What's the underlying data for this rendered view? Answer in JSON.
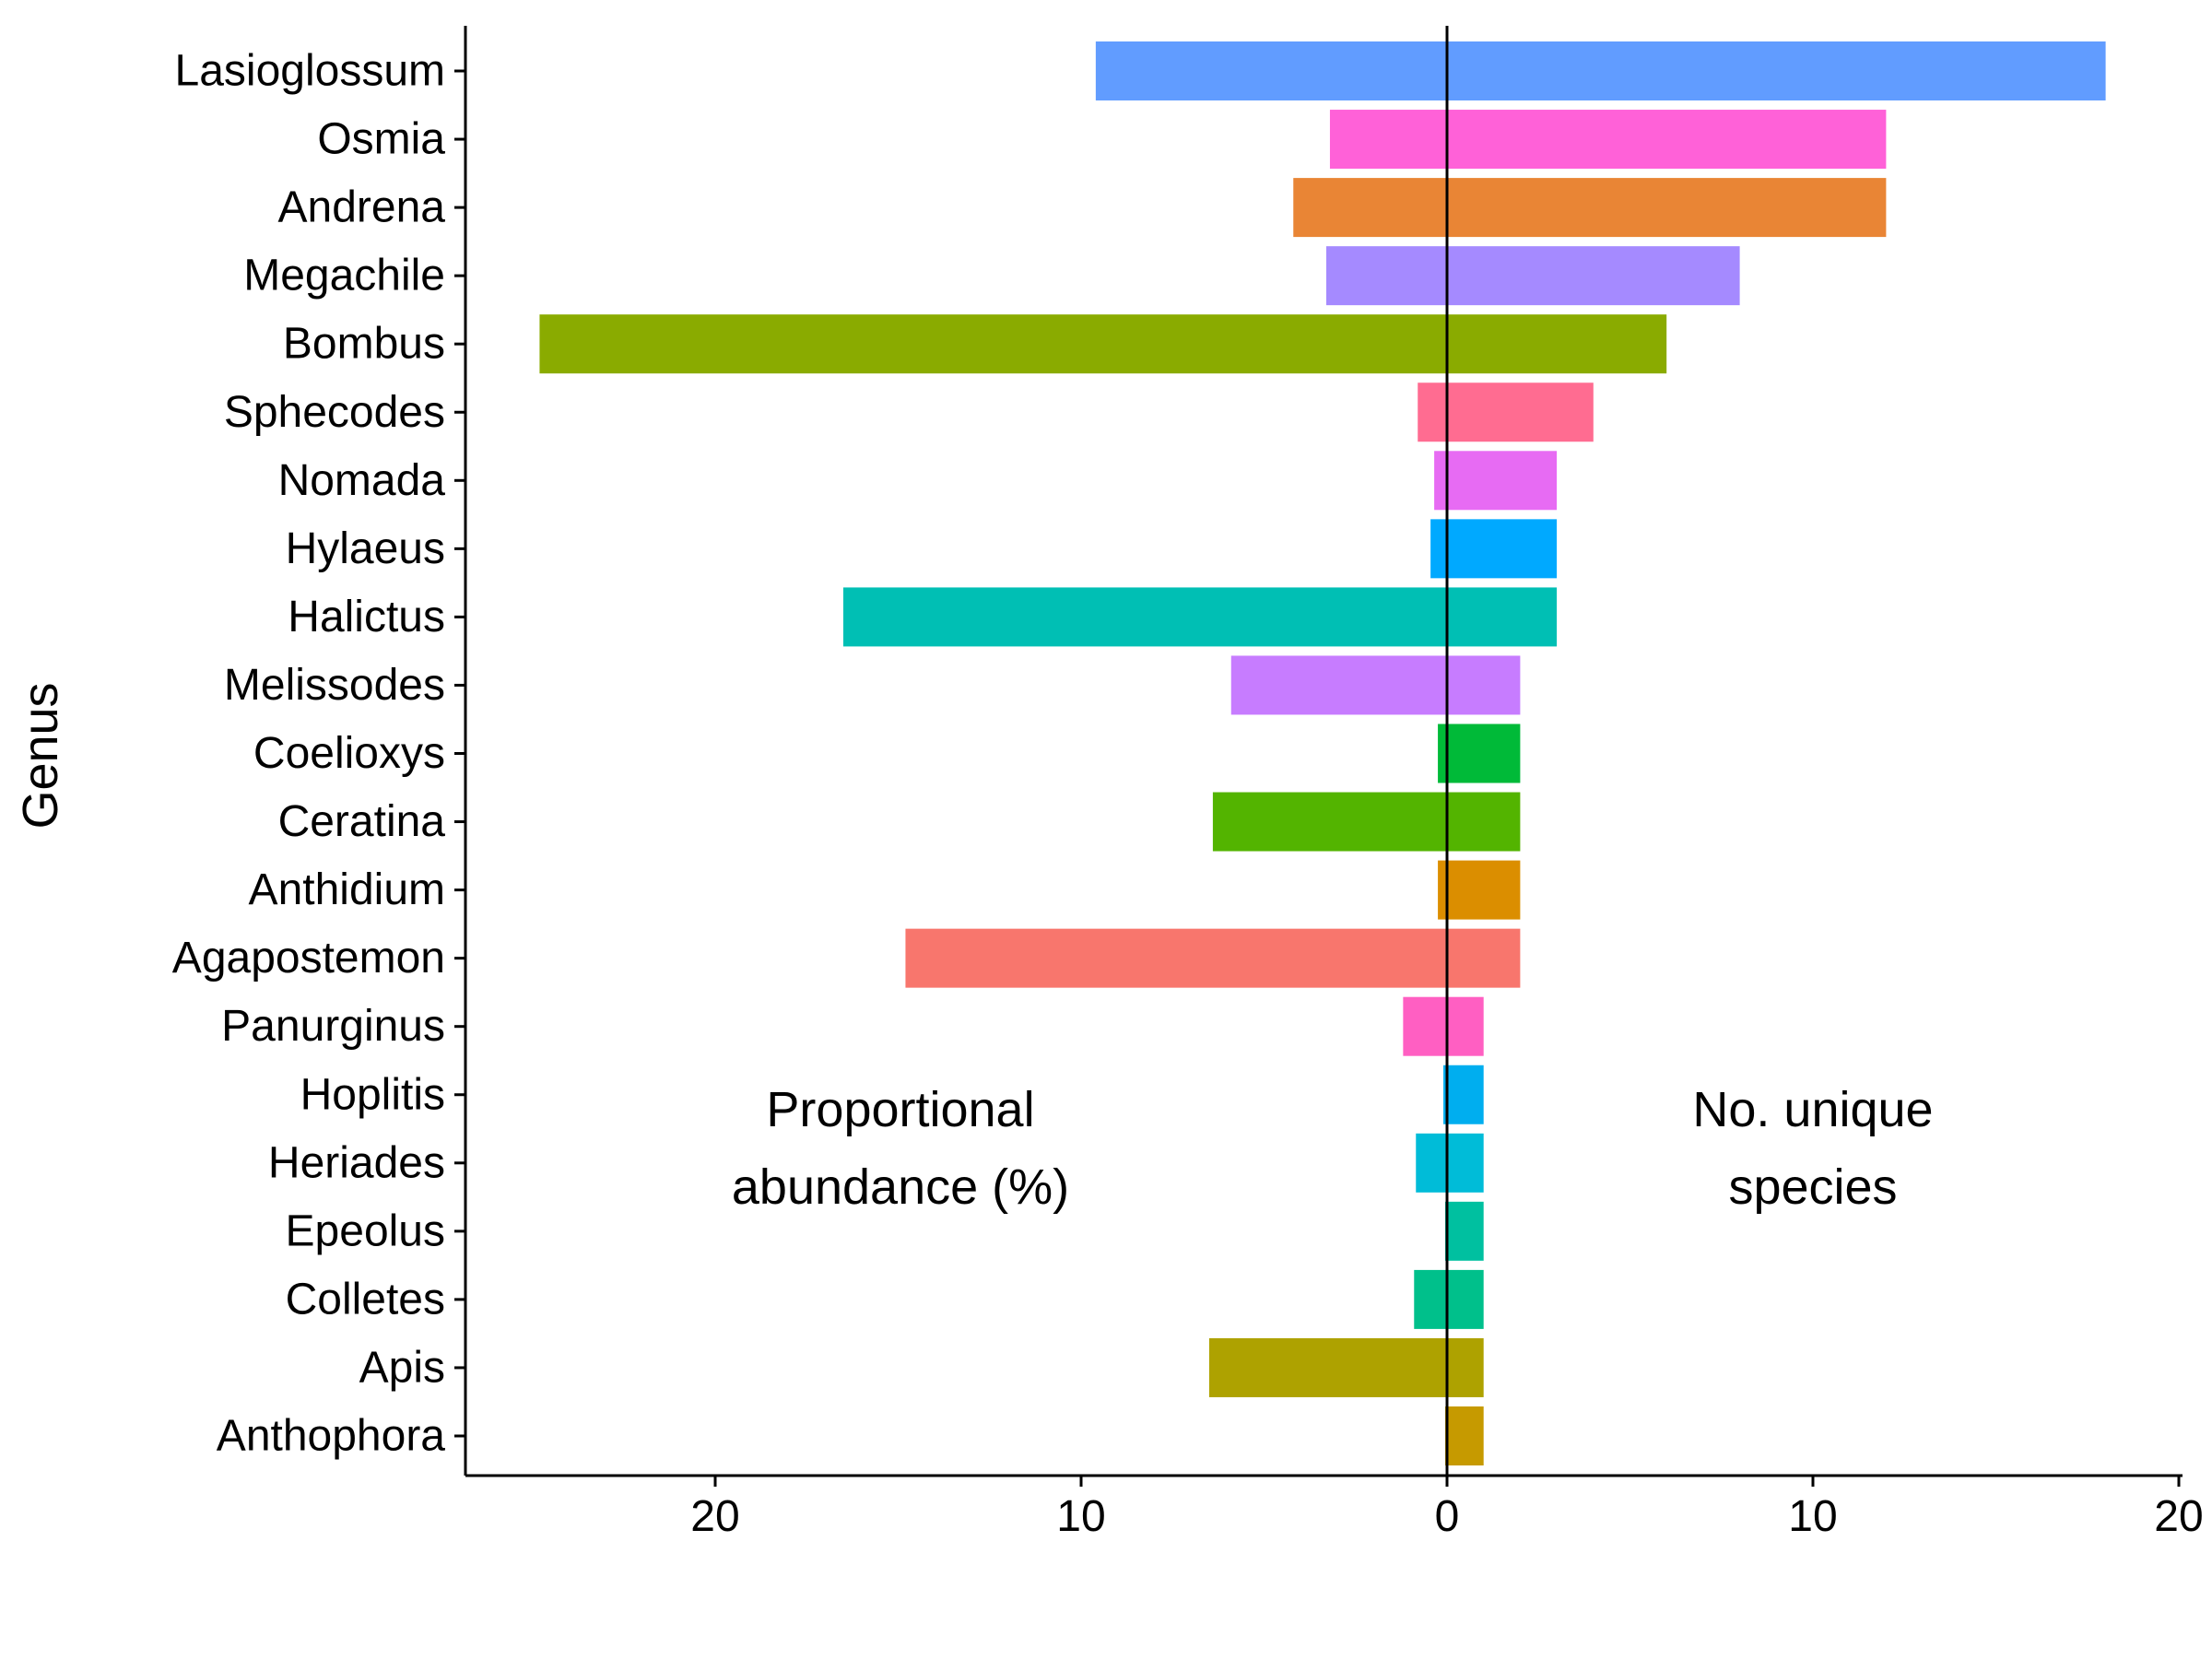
{
  "chart_data": {
    "type": "bar",
    "orientation": "horizontal-diverging",
    "ylabel": "Genus",
    "xlabel": "",
    "xlim": [
      -27,
      20
    ],
    "x_ticks": [
      {
        "value": -20,
        "label": "20"
      },
      {
        "value": -10,
        "label": "10"
      },
      {
        "value": 0,
        "label": "0"
      },
      {
        "value": 10,
        "label": "10"
      },
      {
        "value": 20,
        "label": "20"
      }
    ],
    "annotations": {
      "left": [
        "Proportional",
        "abundance (%)"
      ],
      "right": [
        "No. unique",
        "species"
      ]
    },
    "categories": [
      "Lasioglossum",
      "Osmia",
      "Andrena",
      "Megachile",
      "Bombus",
      "Sphecodes",
      "Nomada",
      "Hylaeus",
      "Halictus",
      "Melissodes",
      "Coelioxys",
      "Ceratina",
      "Anthidium",
      "Agapostemon",
      "Panurginus",
      "Hoplitis",
      "Heriades",
      "Epeolus",
      "Colletes",
      "Apis",
      "Anthophora"
    ],
    "series": [
      {
        "name": "Proportional abundance (%)",
        "side": "left",
        "values": [
          9.6,
          3.2,
          4.2,
          3.3,
          24.8,
          0.8,
          0.35,
          0.45,
          16.5,
          5.9,
          0.25,
          6.4,
          0.25,
          14.8,
          1.2,
          0.1,
          0.85,
          0.05,
          0.9,
          6.5,
          0.05
        ]
      },
      {
        "name": "No. unique species",
        "side": "right",
        "values": [
          18,
          12,
          12,
          8,
          6,
          4,
          3,
          3,
          3,
          2,
          2,
          2,
          2,
          2,
          1,
          1,
          1,
          1,
          1,
          1,
          1
        ]
      }
    ],
    "colors": [
      "#619CFF",
      "#FF61D8",
      "#E98535",
      "#A58AFF",
      "#8AAB00",
      "#FF6C91",
      "#E76BF3",
      "#00A9FF",
      "#00BFB4",
      "#C77CFF",
      "#00BA38",
      "#53B400",
      "#DB8E00",
      "#F8766D",
      "#FF5FC2",
      "#00AEEF",
      "#00BCD8",
      "#00C0A0",
      "#00C08B",
      "#AEA200",
      "#C69A00"
    ],
    "grid": false,
    "legend": "none"
  }
}
